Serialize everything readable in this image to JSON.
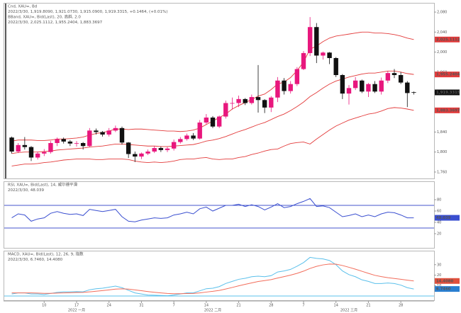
{
  "chart_data": [
    {
      "type": "candlestick",
      "legend": [
        {
          "text": "Cnd, XAU=, Bd",
          "color": "#222222"
        },
        {
          "text": "2022/3/30, 1,919.8090, 1,921.0730, 1,915.0900, 1,919.3315, +0.1464, (+0.01%)",
          "color": "#222222"
        },
        {
          "text": "BBand, XAU=, Bid(Last), 20, 高斜, 2.0",
          "color": "#e03030"
        },
        {
          "text": "2022/3/30, 2,025.1112, 1,955.2404, 1,883.3697",
          "color": "#e03030"
        }
      ],
      "categories": [
        null,
        null,
        null,
        null,
        null,
        "10",
        null,
        null,
        null,
        null,
        "17",
        null,
        null,
        null,
        null,
        "24",
        null,
        null,
        null,
        null,
        "31",
        null,
        null,
        null,
        null,
        "7",
        null,
        null,
        null,
        null,
        "14",
        null,
        null,
        null,
        null,
        "21",
        null,
        null,
        null,
        null,
        "28",
        null,
        null,
        null,
        null,
        "7",
        null,
        null,
        null,
        null,
        "14",
        null,
        null,
        null,
        null,
        "21",
        null,
        null,
        null,
        null,
        "28",
        null,
        null
      ],
      "month_labels": [
        "2022 一月",
        "2022 二月",
        "2022 三月"
      ],
      "open": [
        1829,
        1801,
        1814,
        1810,
        1789,
        1797,
        1800,
        1818,
        1826,
        1821,
        1817,
        1818,
        1812,
        1843,
        1840,
        1835,
        1843,
        1848,
        1819,
        1796,
        1791,
        1797,
        1801,
        1808,
        1804,
        1807,
        1820,
        1826,
        1833,
        1827,
        1859,
        1869,
        1851,
        1871,
        1898,
        1898,
        1906,
        1898,
        1910,
        1904,
        1889,
        1909,
        1943,
        1922,
        1936,
        1966,
        1998,
        2050,
        1993,
        1999,
        1988,
        1954,
        1917,
        1928,
        1943,
        1921,
        1936,
        1921,
        1943,
        1958,
        1954,
        1939,
        1919.809
      ],
      "high": [
        1831,
        1818,
        1830,
        1812,
        1801,
        1806,
        1822,
        1829,
        1829,
        1824,
        1822,
        1820,
        1848,
        1847,
        1842,
        1848,
        1853,
        1851,
        1820,
        1801,
        1799,
        1805,
        1812,
        1811,
        1810,
        1825,
        1830,
        1837,
        1838,
        1864,
        1876,
        1872,
        1873,
        1903,
        1909,
        1913,
        1908,
        1915,
        1974,
        1906,
        1912,
        1950,
        1948,
        1942,
        1970,
        2002,
        2070,
        2058,
        2001,
        2000,
        1990,
        1956,
        1934,
        1950,
        1945,
        1938,
        1942,
        1949,
        1962,
        1966,
        1960,
        1942,
        1921.073
      ],
      "low": [
        1797,
        1798,
        1805,
        1782,
        1785,
        1792,
        1797,
        1812,
        1817,
        1812,
        1811,
        1805,
        1810,
        1835,
        1831,
        1831,
        1840,
        1815,
        1788,
        1780,
        1786,
        1794,
        1798,
        1800,
        1800,
        1803,
        1817,
        1823,
        1824,
        1825,
        1855,
        1848,
        1848,
        1867,
        1885,
        1890,
        1894,
        1895,
        1879,
        1878,
        1880,
        1900,
        1915,
        1917,
        1932,
        1964,
        1992,
        1978,
        1985,
        1976,
        1950,
        1906,
        1895,
        1924,
        1918,
        1910,
        1918,
        1915,
        1938,
        1948,
        1936,
        1890,
        1915.09
      ],
      "close": [
        1801,
        1814,
        1810,
        1789,
        1797,
        1800,
        1818,
        1826,
        1821,
        1817,
        1818,
        1812,
        1843,
        1840,
        1835,
        1843,
        1848,
        1819,
        1796,
        1791,
        1797,
        1801,
        1808,
        1804,
        1807,
        1820,
        1826,
        1833,
        1827,
        1859,
        1869,
        1851,
        1871,
        1898,
        1898,
        1906,
        1898,
        1910,
        1904,
        1889,
        1909,
        1943,
        1922,
        1936,
        1966,
        1998,
        2050,
        1993,
        1999,
        1988,
        1954,
        1917,
        1928,
        1943,
        1921,
        1936,
        1921,
        1943,
        1958,
        1954,
        1939,
        1918,
        1919.3315
      ],
      "up_color": "#e8177d",
      "down_color": "#111111",
      "bands": {
        "color": "#e33b3b",
        "upper": [
          1822,
          1824,
          1824,
          1824,
          1823,
          1823,
          1824,
          1826,
          1826,
          1827,
          1828,
          1830,
          1834,
          1837,
          1839,
          1842,
          1846,
          1846,
          1845,
          1846,
          1846,
          1845,
          1844,
          1843,
          1842,
          1842,
          1841,
          1842,
          1844,
          1848,
          1855,
          1862,
          1869,
          1876,
          1886,
          1893,
          1899,
          1905,
          1912,
          1916,
          1925,
          1936,
          1940,
          1949,
          1963,
          1980,
          2006,
          2012,
          2021,
          2028,
          2032,
          2034,
          2036,
          2038,
          2040,
          2040,
          2038,
          2038,
          2037,
          2035,
          2032,
          2028,
          2025.1112
        ],
        "middle": [
          1797,
          1799,
          1800,
          1800,
          1800,
          1801,
          1802,
          1804,
          1805,
          1806,
          1807,
          1808,
          1810,
          1811,
          1812,
          1814,
          1816,
          1816,
          1815,
          1814,
          1813,
          1812,
          1812,
          1811,
          1811,
          1812,
          1813,
          1814,
          1815,
          1818,
          1822,
          1824,
          1827,
          1831,
          1836,
          1841,
          1845,
          1850,
          1855,
          1859,
          1865,
          1871,
          1876,
          1883,
          1891,
          1900,
          1911,
          1919,
          1928,
          1936,
          1942,
          1946,
          1950,
          1953,
          1956,
          1958,
          1958,
          1960,
          1962,
          1962,
          1960,
          1957,
          1955.2404
        ],
        "lower": [
          1772,
          1774,
          1776,
          1776,
          1777,
          1779,
          1780,
          1782,
          1784,
          1785,
          1786,
          1786,
          1786,
          1785,
          1785,
          1786,
          1786,
          1786,
          1785,
          1782,
          1780,
          1779,
          1780,
          1779,
          1780,
          1782,
          1785,
          1786,
          1786,
          1788,
          1789,
          1786,
          1785,
          1786,
          1786,
          1789,
          1791,
          1795,
          1798,
          1802,
          1805,
          1806,
          1812,
          1817,
          1819,
          1820,
          1816,
          1826,
          1835,
          1844,
          1852,
          1858,
          1864,
          1868,
          1872,
          1876,
          1878,
          1882,
          1887,
          1889,
          1888,
          1886,
          1883.3697
        ]
      },
      "ylim": [
        1750,
        2090
      ],
      "yticks": [
        {
          "value": 1760,
          "label": "1,760"
        },
        {
          "value": 1800,
          "label": "1,800"
        },
        {
          "value": 1840,
          "label": "1,840"
        },
        {
          "value": 1880,
          "label": "1,880"
        },
        {
          "value": 1920,
          "label": "1,920"
        },
        {
          "value": 1960,
          "label": "1,960"
        },
        {
          "value": 2000,
          "label": "2,000"
        },
        {
          "value": 2040,
          "label": "2,040"
        },
        {
          "value": 2080,
          "label": "2,080"
        }
      ],
      "last_labels": [
        {
          "value": 2025.1112,
          "label": "2,025.1112",
          "color": "#e33b3b"
        },
        {
          "value": 1955.2404,
          "label": "1,955.2404",
          "color": "#e33b3b"
        },
        {
          "value": 1919.3315,
          "label": "1,919.3315",
          "color": "#111111"
        },
        {
          "value": 1883.3697,
          "label": "1,883.3697",
          "color": "#e33b3b"
        }
      ]
    },
    {
      "type": "line",
      "legend": [
        {
          "text": "RSI, XAU=, Bid(Last), 14, 威尔德平滑",
          "color": "#3344bb"
        },
        {
          "text": "2022/3/30, 48.039",
          "color": "#3344bb"
        }
      ],
      "series": [
        {
          "name": "RSI",
          "color": "#3a4fd0",
          "values": [
            48,
            55,
            53,
            42,
            46,
            48,
            56,
            59,
            56,
            54,
            55,
            52,
            63,
            61,
            59,
            61,
            63,
            50,
            42,
            41,
            44,
            46,
            48,
            47,
            48,
            53,
            55,
            58,
            55,
            64,
            67,
            60,
            65,
            70,
            70,
            72,
            68,
            71,
            68,
            62,
            67,
            73,
            66,
            68,
            73,
            77,
            82,
            68,
            69,
            66,
            58,
            50,
            52,
            55,
            50,
            53,
            50,
            55,
            58,
            57,
            53,
            48,
            48.039
          ]
        }
      ],
      "levels": [
        70,
        30
      ],
      "level_color": "#4455cc",
      "ylim": [
        0,
        100
      ],
      "yticks": [
        20,
        40,
        60,
        80
      ],
      "last_labels": [
        {
          "value": 48.039,
          "label": "48.039",
          "color": "#3a4fd0"
        }
      ]
    },
    {
      "type": "line",
      "legend": [
        {
          "text": "MACD, XAU=, Bid(Last), 12, 26, 9, 指数",
          "color": "#3a9fd8"
        },
        {
          "text": "2022/3/30, 6.7460, 14.4080",
          "color": "#e0503c"
        }
      ],
      "series": [
        {
          "name": "MACD",
          "color": "#5bc0eb",
          "values": [
            2,
            3,
            3,
            2,
            2,
            1.5,
            2.5,
            3.5,
            4,
            4,
            4.2,
            4,
            6,
            7,
            7.5,
            8.5,
            9.5,
            8,
            5.5,
            3,
            2,
            1,
            0.8,
            0.5,
            0.3,
            1,
            2,
            3,
            3,
            5,
            7,
            7.5,
            9,
            12,
            14,
            16,
            17,
            18.5,
            19,
            18.5,
            19.5,
            23,
            24,
            25.5,
            28.5,
            32,
            37,
            36,
            35.5,
            34,
            30,
            24,
            20.5,
            18.5,
            15.5,
            14,
            12,
            12,
            12.5,
            12,
            10.5,
            8,
            6.746
          ]
        },
        {
          "name": "Signal",
          "color": "#f26d5b",
          "values": [
            3,
            3,
            3,
            3,
            2.8,
            2.6,
            2.6,
            2.8,
            3,
            3.2,
            3.4,
            3.5,
            4,
            4.6,
            5.2,
            5.9,
            6.6,
            6.9,
            6.6,
            5.9,
            5.1,
            4.3,
            3.6,
            3,
            2.5,
            2.2,
            2.2,
            2.4,
            2.5,
            3,
            3.8,
            4.5,
            5.4,
            6.7,
            8.2,
            9.8,
            11.2,
            12.6,
            13.9,
            14.8,
            15.7,
            17.2,
            18.6,
            20,
            21.7,
            23.8,
            26.4,
            28.4,
            29.8,
            30.6,
            30.5,
            29.2,
            27.5,
            25.7,
            23.7,
            21.7,
            19.8,
            18.6,
            17.6,
            16.8,
            16,
            15.2,
            14.408
          ]
        }
      ],
      "zero_line": 0,
      "zero_color": "#5bc0eb",
      "ylim": [
        -2,
        40
      ],
      "yticks": [
        10,
        20,
        30
      ],
      "last_labels": [
        {
          "value": 14.408,
          "label": "14.4080",
          "color": "#e0503c"
        },
        {
          "value": 6.746,
          "label": "6.7460",
          "color": "#2a7fd0"
        }
      ]
    }
  ]
}
